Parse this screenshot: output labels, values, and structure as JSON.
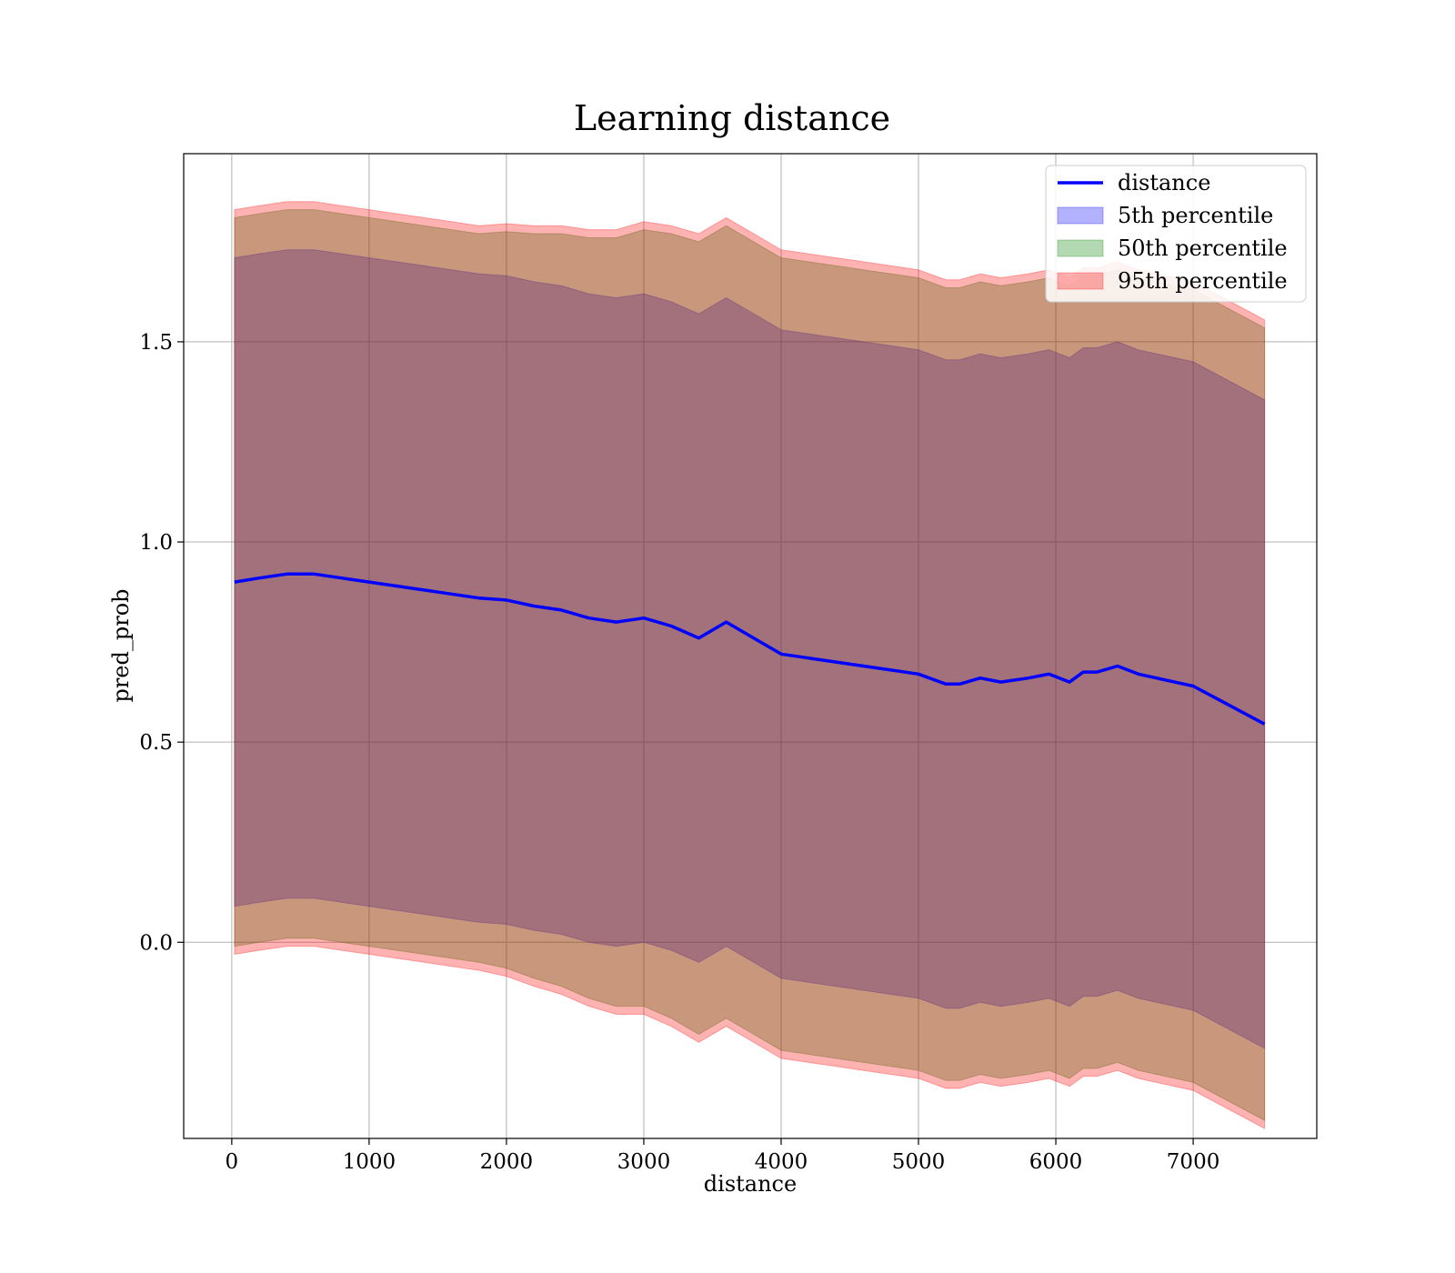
{
  "chart_data": {
    "type": "line",
    "title": "Learning distance",
    "xlabel": "distance",
    "ylabel": "pred_prob",
    "xlim": [
      -350,
      7900
    ],
    "ylim": [
      -0.49,
      1.97
    ],
    "xticks": [
      0,
      1000,
      2000,
      3000,
      4000,
      5000,
      6000,
      7000
    ],
    "xtick_labels": [
      "0",
      "1000",
      "2000",
      "3000",
      "4000",
      "5000",
      "6000",
      "7000"
    ],
    "yticks": [
      0.0,
      0.5,
      1.0,
      1.5
    ],
    "ytick_labels": [
      "0.0",
      "0.5",
      "1.0",
      "1.5"
    ],
    "grid": true,
    "legend_position": "top-right",
    "x": [
      20,
      200,
      400,
      600,
      800,
      1000,
      1200,
      1400,
      1600,
      1800,
      2000,
      2200,
      2400,
      2600,
      2800,
      3000,
      3200,
      3400,
      3600,
      3800,
      4000,
      4200,
      4400,
      4600,
      4800,
      5000,
      5200,
      5300,
      5450,
      5600,
      5800,
      5950,
      6100,
      6200,
      6300,
      6450,
      6600,
      6800,
      7000,
      7520
    ],
    "series": [
      {
        "name": "distance",
        "color": "#0000ff",
        "style": "line",
        "values": [
          0.9,
          0.91,
          0.92,
          0.92,
          0.91,
          0.9,
          0.89,
          0.88,
          0.87,
          0.86,
          0.855,
          0.84,
          0.83,
          0.81,
          0.8,
          0.81,
          0.79,
          0.76,
          0.8,
          0.76,
          0.72,
          0.71,
          0.7,
          0.69,
          0.68,
          0.67,
          0.645,
          0.645,
          0.66,
          0.65,
          0.66,
          0.67,
          0.65,
          0.675,
          0.675,
          0.69,
          0.67,
          0.655,
          0.64,
          0.545
        ]
      },
      {
        "name": "5th percentile",
        "color": "#0000ff",
        "style": "band",
        "lower": [
          0.09,
          0.1,
          0.11,
          0.11,
          0.1,
          0.09,
          0.08,
          0.07,
          0.06,
          0.05,
          0.045,
          0.03,
          0.02,
          0.0,
          -0.01,
          0.0,
          -0.02,
          -0.05,
          -0.01,
          -0.05,
          -0.09,
          -0.1,
          -0.11,
          -0.12,
          -0.13,
          -0.14,
          -0.165,
          -0.165,
          -0.15,
          -0.16,
          -0.15,
          -0.14,
          -0.16,
          -0.135,
          -0.135,
          -0.12,
          -0.14,
          -0.155,
          -0.17,
          -0.265
        ],
        "upper": [
          1.71,
          1.72,
          1.73,
          1.73,
          1.72,
          1.71,
          1.7,
          1.69,
          1.68,
          1.67,
          1.665,
          1.65,
          1.64,
          1.62,
          1.61,
          1.62,
          1.6,
          1.57,
          1.61,
          1.57,
          1.53,
          1.52,
          1.51,
          1.5,
          1.49,
          1.48,
          1.455,
          1.455,
          1.47,
          1.46,
          1.47,
          1.48,
          1.46,
          1.485,
          1.485,
          1.5,
          1.48,
          1.465,
          1.45,
          1.355
        ]
      },
      {
        "name": "50th percentile",
        "color": "#008000",
        "style": "band",
        "lower": [
          -0.01,
          0.0,
          0.01,
          0.01,
          0.0,
          -0.01,
          -0.02,
          -0.03,
          -0.04,
          -0.05,
          -0.065,
          -0.09,
          -0.11,
          -0.14,
          -0.16,
          -0.16,
          -0.19,
          -0.23,
          -0.19,
          -0.23,
          -0.27,
          -0.28,
          -0.29,
          -0.3,
          -0.31,
          -0.32,
          -0.345,
          -0.345,
          -0.33,
          -0.34,
          -0.33,
          -0.32,
          -0.34,
          -0.315,
          -0.315,
          -0.3,
          -0.32,
          -0.335,
          -0.35,
          -0.445
        ],
        "upper": [
          1.81,
          1.82,
          1.83,
          1.83,
          1.82,
          1.81,
          1.8,
          1.79,
          1.78,
          1.77,
          1.775,
          1.77,
          1.77,
          1.76,
          1.76,
          1.78,
          1.77,
          1.75,
          1.79,
          1.75,
          1.71,
          1.7,
          1.69,
          1.68,
          1.67,
          1.66,
          1.635,
          1.635,
          1.65,
          1.64,
          1.65,
          1.66,
          1.64,
          1.665,
          1.665,
          1.68,
          1.66,
          1.645,
          1.63,
          1.535
        ]
      },
      {
        "name": "95th percentile",
        "color": "#ff0000",
        "style": "band",
        "lower": [
          -0.03,
          -0.02,
          -0.01,
          -0.01,
          -0.02,
          -0.03,
          -0.04,
          -0.05,
          -0.06,
          -0.07,
          -0.085,
          -0.11,
          -0.13,
          -0.16,
          -0.18,
          -0.18,
          -0.21,
          -0.25,
          -0.21,
          -0.25,
          -0.29,
          -0.3,
          -0.31,
          -0.32,
          -0.33,
          -0.34,
          -0.365,
          -0.365,
          -0.35,
          -0.36,
          -0.35,
          -0.34,
          -0.36,
          -0.335,
          -0.335,
          -0.32,
          -0.34,
          -0.355,
          -0.37,
          -0.465
        ],
        "upper": [
          1.83,
          1.84,
          1.85,
          1.85,
          1.84,
          1.83,
          1.82,
          1.81,
          1.8,
          1.79,
          1.795,
          1.79,
          1.79,
          1.78,
          1.78,
          1.8,
          1.79,
          1.77,
          1.81,
          1.77,
          1.73,
          1.72,
          1.71,
          1.7,
          1.69,
          1.68,
          1.655,
          1.655,
          1.67,
          1.66,
          1.67,
          1.68,
          1.66,
          1.685,
          1.685,
          1.7,
          1.68,
          1.665,
          1.65,
          1.555
        ]
      }
    ]
  }
}
